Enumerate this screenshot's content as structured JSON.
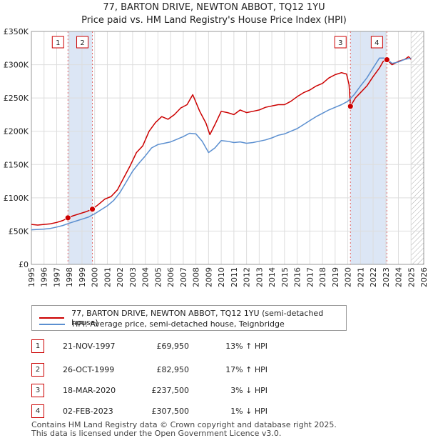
{
  "title": {
    "line1": "77, BARTON DRIVE, NEWTON ABBOT, TQ12 1YU",
    "line2": "Price paid vs. HM Land Registry's House Price Index (HPI)"
  },
  "chart_data": {
    "type": "line",
    "title": "77, BARTON DRIVE, NEWTON ABBOT, TQ12 1YU — Price paid vs. HM Land Registry's House Price Index (HPI)",
    "xlabel": "",
    "ylabel": "",
    "xlim": [
      1995,
      2026
    ],
    "ylim": [
      0,
      350000
    ],
    "y_ticks": [
      0,
      50000,
      100000,
      150000,
      200000,
      250000,
      300000,
      350000
    ],
    "y_tick_labels": [
      "£0",
      "£50K",
      "£100K",
      "£150K",
      "£200K",
      "£250K",
      "£300K",
      "£350K"
    ],
    "x_ticks": [
      1995,
      1996,
      1997,
      1998,
      1999,
      2000,
      2001,
      2002,
      2003,
      2004,
      2005,
      2006,
      2007,
      2008,
      2009,
      2010,
      2011,
      2012,
      2013,
      2014,
      2015,
      2016,
      2017,
      2018,
      2019,
      2020,
      2021,
      2022,
      2023,
      2024,
      2025,
      2026
    ],
    "x_tick_labels": [
      "1995",
      "1996",
      "1997",
      "1998",
      "1999",
      "2000",
      "2001",
      "2002",
      "2003",
      "2004",
      "2005",
      "2006",
      "2007",
      "2008",
      "2009",
      "2010",
      "2011",
      "2012",
      "2013",
      "2014",
      "2015",
      "2016",
      "2017",
      "2018",
      "2019",
      "2020",
      "2021",
      "2022",
      "2023",
      "2024",
      "2025",
      "2026"
    ],
    "grid": true,
    "future_hatch_start": 2025.0,
    "shaded_ranges": [
      [
        1997.89,
        1999.82
      ],
      [
        2020.21,
        2023.09
      ]
    ],
    "series": [
      {
        "name": "77, BARTON DRIVE, NEWTON ABBOT, TQ12 1YU (semi-detached house)",
        "color": "#cc0000",
        "x": [
          1995.0,
          1995.5,
          1996.0,
          1996.5,
          1997.0,
          1997.5,
          1997.89,
          1998.3,
          1998.8,
          1999.3,
          1999.82,
          2000.3,
          2000.8,
          2001.3,
          2001.8,
          2002.3,
          2002.8,
          2003.3,
          2003.8,
          2004.3,
          2004.8,
          2005.3,
          2005.8,
          2006.3,
          2006.8,
          2007.3,
          2007.75,
          2008.3,
          2008.8,
          2009.1,
          2009.5,
          2010.0,
          2010.5,
          2011.0,
          2011.5,
          2012.0,
          2012.5,
          2013.0,
          2013.5,
          2014.0,
          2014.5,
          2015.0,
          2015.5,
          2016.0,
          2016.5,
          2017.0,
          2017.5,
          2018.0,
          2018.5,
          2019.0,
          2019.5,
          2019.9,
          2020.1,
          2020.21,
          2020.6,
          2021.0,
          2021.5,
          2022.0,
          2022.5,
          2022.8,
          2023.09,
          2023.5,
          2024.0,
          2024.5,
          2024.8,
          2025.0
        ],
        "y": [
          60000,
          59000,
          60000,
          61000,
          63000,
          66000,
          69950,
          73000,
          76000,
          79000,
          82950,
          90000,
          98000,
          102000,
          112000,
          130000,
          148000,
          168000,
          178000,
          200000,
          213000,
          222000,
          218000,
          225000,
          235000,
          240000,
          255000,
          230000,
          212000,
          195000,
          210000,
          230000,
          228000,
          225000,
          232000,
          228000,
          230000,
          232000,
          236000,
          238000,
          240000,
          240000,
          245000,
          252000,
          258000,
          262000,
          268000,
          272000,
          280000,
          285000,
          288000,
          286000,
          270000,
          237500,
          250000,
          258000,
          268000,
          282000,
          295000,
          305000,
          307500,
          300000,
          305000,
          308000,
          312000,
          308000
        ]
      },
      {
        "name": "HPI: Average price, semi-detached house, Teignbridge",
        "color": "#5b8fd0",
        "x": [
          1995.0,
          1995.5,
          1996.0,
          1996.5,
          1997.0,
          1997.5,
          1998.0,
          1998.5,
          1999.0,
          1999.5,
          2000.0,
          2000.5,
          2001.0,
          2001.5,
          2002.0,
          2002.5,
          2003.0,
          2003.5,
          2004.0,
          2004.5,
          2005.0,
          2005.5,
          2006.0,
          2006.5,
          2007.0,
          2007.5,
          2008.0,
          2008.5,
          2009.0,
          2009.5,
          2010.0,
          2010.5,
          2011.0,
          2011.5,
          2012.0,
          2012.5,
          2013.0,
          2013.5,
          2014.0,
          2014.5,
          2015.0,
          2015.5,
          2016.0,
          2016.5,
          2017.0,
          2017.5,
          2018.0,
          2018.5,
          2019.0,
          2019.5,
          2020.0,
          2020.5,
          2021.0,
          2021.5,
          2022.0,
          2022.5,
          2023.0,
          2023.5,
          2024.0,
          2024.5,
          2025.0
        ],
        "y": [
          52000,
          52500,
          53000,
          54000,
          56000,
          58500,
          62000,
          65000,
          68000,
          71000,
          76000,
          82000,
          88000,
          96000,
          108000,
          124000,
          140000,
          152000,
          163000,
          175000,
          180000,
          182000,
          184000,
          188000,
          192000,
          197000,
          196000,
          185000,
          168000,
          175000,
          186000,
          185000,
          183000,
          184000,
          182000,
          183000,
          185000,
          187000,
          190000,
          194000,
          196000,
          200000,
          204000,
          210000,
          216000,
          222000,
          227000,
          232000,
          236000,
          240000,
          245000,
          255000,
          268000,
          280000,
          295000,
          310000,
          310000,
          302000,
          304000,
          308000,
          310000
        ]
      }
    ],
    "sales": [
      {
        "n": "1",
        "x": 1997.89,
        "price": 69950
      },
      {
        "n": "2",
        "x": 1999.82,
        "price": 82950
      },
      {
        "n": "3",
        "x": 2020.21,
        "price": 237500
      },
      {
        "n": "4",
        "x": 2023.09,
        "price": 307500
      }
    ]
  },
  "legend": {
    "series1_label": "77, BARTON DRIVE, NEWTON ABBOT, TQ12 1YU (semi-detached house)",
    "series2_label": "HPI: Average price, semi-detached house, Teignbridge"
  },
  "transactions": [
    {
      "n": "1",
      "date": "21-NOV-1997",
      "price": "£69,950",
      "hpi": "13% ↑ HPI"
    },
    {
      "n": "2",
      "date": "26-OCT-1999",
      "price": "£82,950",
      "hpi": "17% ↑ HPI"
    },
    {
      "n": "3",
      "date": "18-MAR-2020",
      "price": "£237,500",
      "hpi": "3% ↓ HPI"
    },
    {
      "n": "4",
      "date": "02-FEB-2023",
      "price": "£307,500",
      "hpi": "1% ↓ HPI"
    }
  ],
  "footer": {
    "line1": "Contains HM Land Registry data © Crown copyright and database right 2025.",
    "line2": "This data is licensed under the Open Government Licence v3.0."
  },
  "colors": {
    "red": "#cc0000",
    "blue": "#5b8fd0",
    "shade": "#dce6f5",
    "grid": "#dddddd"
  }
}
